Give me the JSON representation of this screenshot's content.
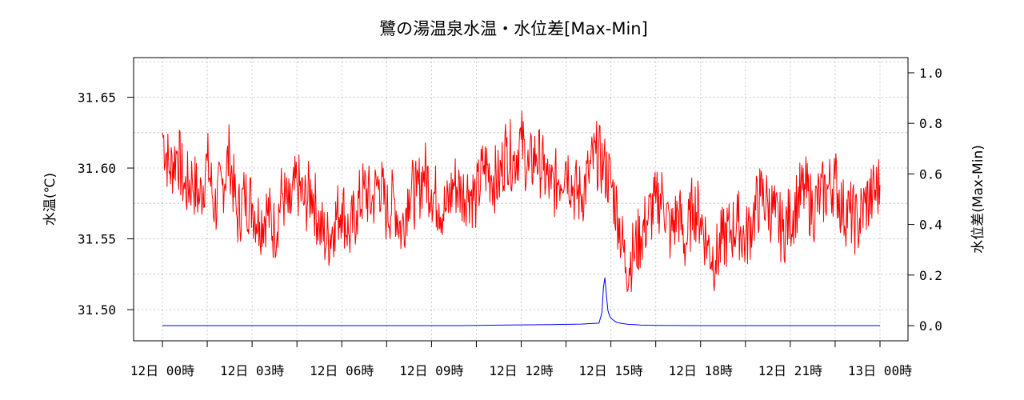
{
  "chart_data": {
    "type": "line",
    "title": "鷺の湯温泉水温・水位差[Max-Min]",
    "ylabel_left": "水温(℃)",
    "ylabel_right": "水位差(Max-Min)",
    "x_ticks": [
      "12日 00時",
      "12日 03時",
      "12日 06時",
      "12日 09時",
      "12日 12時",
      "12日 15時",
      "12日 18時",
      "12日 21時",
      "13日 00時"
    ],
    "x_range_hours": [
      0,
      24
    ],
    "y_left": {
      "ticks": [
        "31.50",
        "31.55",
        "31.60",
        "31.65"
      ],
      "range": [
        31.478,
        31.678
      ]
    },
    "y_right": {
      "ticks": [
        "0.0",
        "0.2",
        "0.4",
        "0.6",
        "0.8",
        "1.0"
      ],
      "range": [
        -0.06,
        1.06
      ]
    },
    "grid": true,
    "series": [
      {
        "color": "#ff0000",
        "axis": "left",
        "x_hours": [
          0,
          0.25,
          0.5,
          0.75,
          1,
          1.25,
          1.5,
          1.75,
          2,
          2.25,
          2.5,
          2.75,
          3,
          3.25,
          3.5,
          3.75,
          4,
          4.25,
          4.5,
          4.75,
          5,
          5.25,
          5.5,
          5.75,
          6,
          6.25,
          6.5,
          6.75,
          7,
          7.25,
          7.5,
          7.75,
          8,
          8.25,
          8.5,
          8.75,
          9,
          9.25,
          9.5,
          9.75,
          10,
          10.25,
          10.5,
          10.75,
          11,
          11.25,
          11.5,
          11.75,
          12,
          12.25,
          12.5,
          12.75,
          13,
          13.25,
          13.5,
          13.75,
          14,
          14.25,
          14.5,
          14.75,
          15,
          15.25,
          15.5,
          15.75,
          16,
          16.25,
          16.5,
          16.75,
          17,
          17.25,
          17.5,
          17.75,
          18,
          18.25,
          18.5,
          18.75,
          19,
          19.25,
          19.5,
          19.75,
          20,
          20.25,
          20.5,
          20.75,
          21,
          21.25,
          21.5,
          21.75,
          22,
          22.25,
          22.5,
          22.75,
          23,
          23.25,
          23.5,
          23.75,
          24
        ],
        "values": [
          31.625,
          31.598,
          31.612,
          31.585,
          31.592,
          31.578,
          31.605,
          31.572,
          31.588,
          31.61,
          31.565,
          31.58,
          31.575,
          31.562,
          31.57,
          31.555,
          31.582,
          31.568,
          31.59,
          31.575,
          31.585,
          31.56,
          31.548,
          31.562,
          31.575,
          31.552,
          31.57,
          31.585,
          31.575,
          31.592,
          31.568,
          31.578,
          31.555,
          31.585,
          31.58,
          31.598,
          31.585,
          31.575,
          31.57,
          31.59,
          31.582,
          31.585,
          31.578,
          31.602,
          31.595,
          31.59,
          31.615,
          31.605,
          31.62,
          31.598,
          31.61,
          31.598,
          31.585,
          31.592,
          31.605,
          31.585,
          31.58,
          31.595,
          31.61,
          31.602,
          31.59,
          31.565,
          31.53,
          31.54,
          31.552,
          31.565,
          31.575,
          31.58,
          31.552,
          31.57,
          31.545,
          31.575,
          31.565,
          31.545,
          31.535,
          31.55,
          31.555,
          31.562,
          31.548,
          31.565,
          31.58,
          31.575,
          31.565,
          31.555,
          31.565,
          31.578,
          31.585,
          31.57,
          31.58,
          31.585,
          31.592,
          31.57,
          31.568,
          31.56,
          31.575,
          31.58,
          31.588
        ]
      },
      {
        "color": "#0000ff",
        "axis": "right",
        "x_hours": [
          0,
          2,
          4,
          6,
          8,
          10,
          12,
          13,
          14,
          14.6,
          14.7,
          14.75,
          14.8,
          14.85,
          14.9,
          14.95,
          15,
          15.1,
          15.2,
          15.4,
          15.6,
          15.8,
          16,
          16.5,
          18,
          20,
          22,
          24
        ],
        "values": [
          0,
          0,
          0,
          0,
          0,
          0,
          0.003,
          0.004,
          0.006,
          0.01,
          0.05,
          0.15,
          0.19,
          0.12,
          0.06,
          0.04,
          0.03,
          0.02,
          0.012,
          0.008,
          0.005,
          0.004,
          0.002,
          0.001,
          0,
          0,
          0,
          0
        ]
      }
    ]
  }
}
